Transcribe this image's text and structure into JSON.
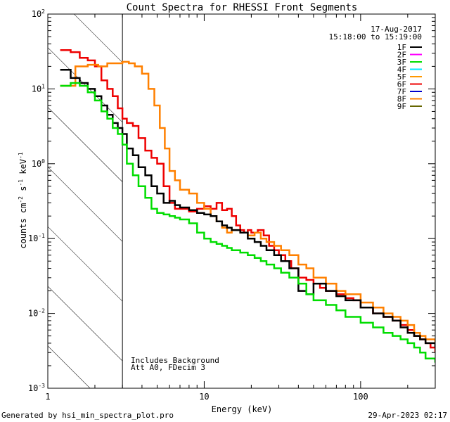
{
  "chart_data": {
    "type": "line",
    "title": "Count Spectra for RHESSI Front Segments",
    "xlabel": "Energy (keV)",
    "ylabel": "counts cm",
    "ylabel_unit_a": "s",
    "ylabel_unit_b": "keV",
    "ylabel_exp1": "-2",
    "ylabel_exp2": "-1",
    "ylabel_exp3": "-1",
    "xscale": "log",
    "yscale": "log",
    "xlim": [
      1,
      300
    ],
    "ylim": [
      0.001,
      100
    ],
    "x_ticks": [
      {
        "v": 1,
        "label": "1"
      },
      {
        "v": 10,
        "label": "10"
      },
      {
        "v": 100,
        "label": "100"
      }
    ],
    "y_ticks": [
      {
        "v": 0.001,
        "base": "10",
        "exp": "-3"
      },
      {
        "v": 0.01,
        "base": "10",
        "exp": "-2"
      },
      {
        "v": 0.1,
        "base": "10",
        "exp": "-1"
      },
      {
        "v": 1,
        "base": "10",
        "exp": "0"
      },
      {
        "v": 10,
        "base": "10",
        "exp": "1"
      },
      {
        "v": 100,
        "base": "10",
        "exp": "2"
      }
    ],
    "date": "17-Aug-2017",
    "time_range": "15:18:00 to 15:19:00",
    "legend": [
      {
        "name": "1F",
        "color": "#000000"
      },
      {
        "name": "2F",
        "color": "#ff00ff"
      },
      {
        "name": "3F",
        "color": "#00dd00"
      },
      {
        "name": "4F",
        "color": "#00e5ff"
      },
      {
        "name": "5F",
        "color": "#ff9900"
      },
      {
        "name": "6F",
        "color": "#ee0000"
      },
      {
        "name": "7F",
        "color": "#0000cc"
      },
      {
        "name": "8F",
        "color": "#ff8000"
      },
      {
        "name": "9F",
        "color": "#666600"
      }
    ],
    "shaded_region": {
      "x_min": 1,
      "x_max": 3
    },
    "annotations": [
      "Includes Background",
      "Att A0, FDecim 3"
    ],
    "series": [
      {
        "name": "6F",
        "color": "#ee0000",
        "x": [
          1.2,
          1.4,
          1.6,
          1.8,
          2.0,
          2.2,
          2.4,
          2.6,
          2.8,
          3.0,
          3.2,
          3.5,
          3.8,
          4.2,
          4.6,
          5.0,
          5.5,
          6.0,
          6.5,
          7.0,
          8.0,
          9.0,
          10,
          11,
          12,
          13,
          14,
          15,
          16,
          17,
          18,
          19,
          20,
          22,
          24,
          26,
          28,
          30,
          33,
          36,
          40,
          45,
          50,
          55,
          60,
          70,
          80,
          90,
          100,
          120,
          140,
          160,
          180,
          200,
          220,
          240,
          260,
          280,
          300
        ],
        "y": [
          33,
          31,
          26,
          24,
          20,
          13,
          10,
          8,
          5.5,
          4,
          3.5,
          3.2,
          2.2,
          1.5,
          1.2,
          1.0,
          0.5,
          0.3,
          0.25,
          0.25,
          0.23,
          0.25,
          0.27,
          0.25,
          0.3,
          0.24,
          0.25,
          0.2,
          0.15,
          0.13,
          0.12,
          0.13,
          0.12,
          0.13,
          0.11,
          0.08,
          0.07,
          0.06,
          0.05,
          0.04,
          0.03,
          0.028,
          0.025,
          0.022,
          0.02,
          0.018,
          0.016,
          0.015,
          0.012,
          0.01,
          0.009,
          0.008,
          0.007,
          0.006,
          0.005,
          0.0045,
          0.004,
          0.0035,
          0.003
        ]
      },
      {
        "name": "8F",
        "color": "#ff8000",
        "x": [
          1.2,
          1.5,
          1.8,
          2.1,
          2.4,
          2.7,
          3.0,
          3.3,
          3.6,
          4.0,
          4.4,
          4.8,
          5.2,
          5.6,
          6.0,
          6.5,
          7.0,
          8.0,
          9.0,
          10,
          11,
          12,
          13,
          14,
          15,
          17,
          19,
          21,
          23,
          25,
          28,
          31,
          35,
          40,
          45,
          50,
          60,
          70,
          80,
          100,
          120,
          140,
          160,
          180,
          200,
          220,
          240,
          260,
          300
        ],
        "y": [
          11,
          20,
          21,
          20,
          22,
          22,
          23,
          22,
          20,
          16,
          10,
          6,
          3,
          1.6,
          0.8,
          0.6,
          0.45,
          0.4,
          0.3,
          0.25,
          0.2,
          0.17,
          0.14,
          0.12,
          0.13,
          0.12,
          0.11,
          0.12,
          0.1,
          0.09,
          0.08,
          0.07,
          0.06,
          0.045,
          0.04,
          0.03,
          0.025,
          0.02,
          0.018,
          0.014,
          0.012,
          0.01,
          0.009,
          0.008,
          0.007,
          0.0055,
          0.005,
          0.0045,
          0.004
        ]
      },
      {
        "name": "1F",
        "color": "#000000",
        "x": [
          1.2,
          1.4,
          1.6,
          1.8,
          2.0,
          2.2,
          2.4,
          2.6,
          2.8,
          3.0,
          3.2,
          3.5,
          3.8,
          4.2,
          4.6,
          5.0,
          5.5,
          6.0,
          6.5,
          7.0,
          8.0,
          9.0,
          10,
          11,
          12,
          13,
          14,
          15,
          17,
          19,
          21,
          23,
          25,
          28,
          31,
          35,
          40,
          45,
          50,
          60,
          70,
          80,
          100,
          120,
          140,
          160,
          180,
          200,
          220,
          240,
          260,
          300
        ],
        "y": [
          18,
          14,
          12,
          10,
          8,
          6,
          4.5,
          3.5,
          3,
          2.5,
          1.6,
          1.3,
          0.9,
          0.7,
          0.5,
          0.4,
          0.3,
          0.32,
          0.28,
          0.26,
          0.24,
          0.22,
          0.21,
          0.2,
          0.17,
          0.15,
          0.14,
          0.13,
          0.12,
          0.1,
          0.09,
          0.08,
          0.07,
          0.06,
          0.05,
          0.04,
          0.02,
          0.018,
          0.025,
          0.02,
          0.017,
          0.015,
          0.012,
          0.01,
          0.009,
          0.008,
          0.0065,
          0.0055,
          0.005,
          0.0045,
          0.004,
          0.0035
        ]
      },
      {
        "name": "3F",
        "color": "#00dd00",
        "x": [
          1.2,
          1.4,
          1.6,
          1.8,
          2.0,
          2.2,
          2.4,
          2.6,
          2.8,
          3.0,
          3.2,
          3.5,
          3.8,
          4.2,
          4.6,
          5.0,
          5.5,
          6.0,
          6.5,
          7.0,
          8.0,
          9.0,
          10,
          11,
          12,
          13,
          14,
          15,
          17,
          19,
          21,
          23,
          25,
          28,
          31,
          35,
          40,
          45,
          50,
          60,
          70,
          80,
          100,
          120,
          140,
          160,
          180,
          200,
          220,
          240,
          260,
          300
        ],
        "y": [
          11,
          12,
          11,
          9,
          7,
          5,
          4,
          3,
          2.5,
          1.8,
          1.0,
          0.7,
          0.5,
          0.35,
          0.25,
          0.22,
          0.21,
          0.2,
          0.19,
          0.18,
          0.16,
          0.12,
          0.1,
          0.09,
          0.085,
          0.08,
          0.075,
          0.07,
          0.065,
          0.06,
          0.055,
          0.05,
          0.045,
          0.04,
          0.035,
          0.03,
          0.025,
          0.018,
          0.015,
          0.013,
          0.011,
          0.009,
          0.0075,
          0.0065,
          0.0055,
          0.005,
          0.0045,
          0.004,
          0.0035,
          0.003,
          0.0025,
          0.0022
        ]
      }
    ]
  },
  "footer": {
    "left": "Generated by hsi_min_spectra_plot.pro",
    "right": "29-Apr-2023 02:17"
  }
}
